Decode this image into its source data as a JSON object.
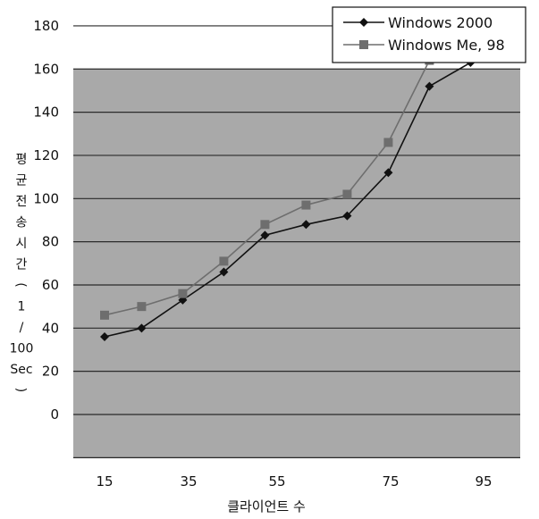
{
  "chart_data": {
    "type": "line",
    "x_tick_labels": [
      "15",
      "35",
      "55",
      "75",
      "95"
    ],
    "y_tick_labels": [
      "0",
      "20",
      "40",
      "60",
      "80",
      "100",
      "120",
      "140",
      "160",
      "180"
    ],
    "xlabel": "클라이언트 수",
    "ylabel_chars": [
      "평",
      "균",
      "전",
      "송",
      "시",
      "간",
      "(",
      "1",
      "/",
      "100",
      "Sec",
      ")"
    ],
    "ylim": [
      -20,
      200
    ],
    "grid": "horizontal",
    "legend_position": "top-right",
    "colors": {
      "plot_background": "#a9a9a9",
      "gridline": "#2a2a2a",
      "series_1": "#111111",
      "series_2": "#6e6e6e"
    },
    "series": [
      {
        "name": "Windows 2000",
        "marker": "diamond",
        "x": [
          15,
          24,
          34,
          44,
          54,
          64,
          74,
          84,
          94,
          104
        ],
        "values": [
          36,
          40,
          53,
          66,
          83,
          88,
          92,
          112,
          152,
          163
        ]
      },
      {
        "name": "Windows Me, 98",
        "marker": "square",
        "x": [
          15,
          24,
          34,
          44,
          54,
          64,
          74,
          84,
          94,
          104
        ],
        "values": [
          46,
          50,
          56,
          71,
          88,
          97,
          102,
          126,
          164,
          170
        ]
      }
    ]
  }
}
